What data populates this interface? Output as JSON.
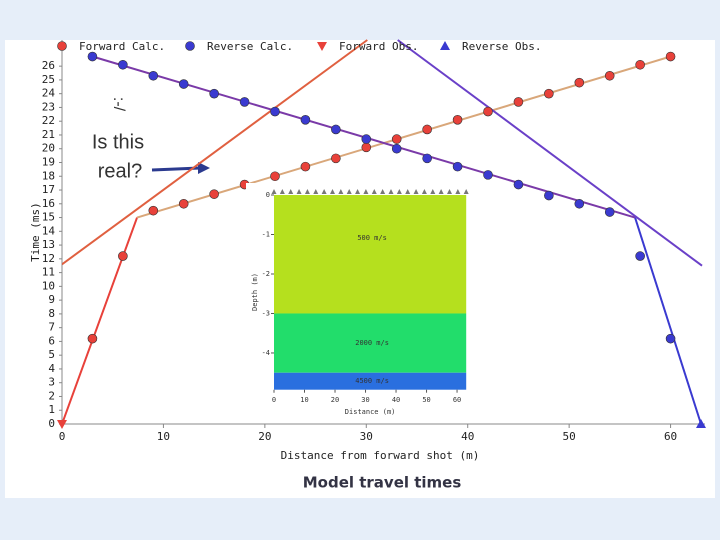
{
  "chart_data": [
    {
      "type": "line",
      "xlabel": "Distance from forward shot (m)",
      "ylabel": "Time (ms)",
      "caption": "Model travel times",
      "xlim": [
        0,
        63
      ],
      "ylim": [
        0,
        27.9
      ],
      "xticks": [
        0,
        10,
        20,
        30,
        40,
        50,
        60
      ],
      "yticks": [
        0,
        1,
        2,
        3,
        4,
        5,
        6,
        7,
        8,
        9,
        10,
        11,
        12,
        13,
        14,
        15,
        16,
        17,
        18,
        19,
        20,
        21,
        22,
        23,
        24,
        25,
        26
      ],
      "series": [
        {
          "name": "Forward Calc.",
          "color": "#e8413a",
          "marker": "circle",
          "x": [
            3,
            6,
            9,
            12,
            15,
            18,
            21,
            24,
            27,
            30,
            33,
            36,
            39,
            42,
            45,
            48,
            51,
            54,
            57,
            60
          ],
          "values": [
            6.2,
            12.2,
            15.5,
            16.0,
            16.7,
            17.4,
            18.0,
            18.7,
            19.3,
            20.1,
            20.7,
            21.4,
            22.1,
            22.7,
            23.4,
            24.0,
            24.8,
            25.3,
            26.1,
            26.7
          ]
        },
        {
          "name": "Reverse Calc.",
          "color": "#3a3ad0",
          "marker": "circle",
          "x": [
            3,
            6,
            9,
            12,
            15,
            18,
            21,
            24,
            27,
            30,
            33,
            36,
            39,
            42,
            45,
            48,
            51,
            54,
            57,
            60
          ],
          "values": [
            26.7,
            26.1,
            25.3,
            24.7,
            24.0,
            23.4,
            22.7,
            22.1,
            21.4,
            20.7,
            20.0,
            19.3,
            18.7,
            18.1,
            17.4,
            16.6,
            16.0,
            15.4,
            12.2,
            6.2
          ]
        },
        {
          "name": "Forward Obs.",
          "color": "#e8413a",
          "marker": "triangle-down",
          "x": [
            0
          ],
          "values": [
            0
          ]
        },
        {
          "name": "Reverse Obs.",
          "color": "#3a3ad0",
          "marker": "triangle-up",
          "x": [
            63
          ],
          "values": [
            0
          ]
        }
      ],
      "lines": [
        {
          "color": "#e8413a",
          "x": [
            0,
            7.4
          ],
          "values": [
            0,
            15.0
          ]
        },
        {
          "color": "#d9a77a",
          "x": [
            7.4,
            60
          ],
          "values": [
            15.0,
            26.7
          ]
        },
        {
          "color": "#e06040",
          "x": [
            0,
            30.1
          ],
          "values": [
            11.6,
            27.9
          ]
        },
        {
          "color": "#3a3ad0",
          "x": [
            63,
            56.5
          ],
          "values": [
            0,
            15.0
          ]
        },
        {
          "color": "#7a3aa8",
          "x": [
            56.5,
            3
          ],
          "values": [
            15.0,
            26.7
          ]
        },
        {
          "color": "#6a40c8",
          "x": [
            33.1,
            63.1
          ],
          "values": [
            27.9,
            11.5
          ]
        }
      ],
      "annotations": [
        "Is this",
        "real?",
        ":-/"
      ]
    },
    {
      "type": "layers",
      "xlabel": "Distance (m)",
      "ylabel": "Depth (m)",
      "xlim": [
        0,
        63
      ],
      "ylim": [
        -4.93,
        0
      ],
      "xticks": [
        0,
        10,
        20,
        30,
        40,
        50,
        60
      ],
      "yticks": [
        0,
        -1,
        -2,
        -3,
        -4
      ],
      "layers": [
        {
          "label": "500 m/s",
          "top": 0,
          "bottom": -3.0,
          "color": "#b5e01e"
        },
        {
          "label": "2000 m/s",
          "top": -3.0,
          "bottom": -4.5,
          "color": "#22dd6b"
        },
        {
          "label": "4500 m/s",
          "top": -4.5,
          "bottom": -4.93,
          "color": "#2a6fdf"
        }
      ]
    }
  ]
}
